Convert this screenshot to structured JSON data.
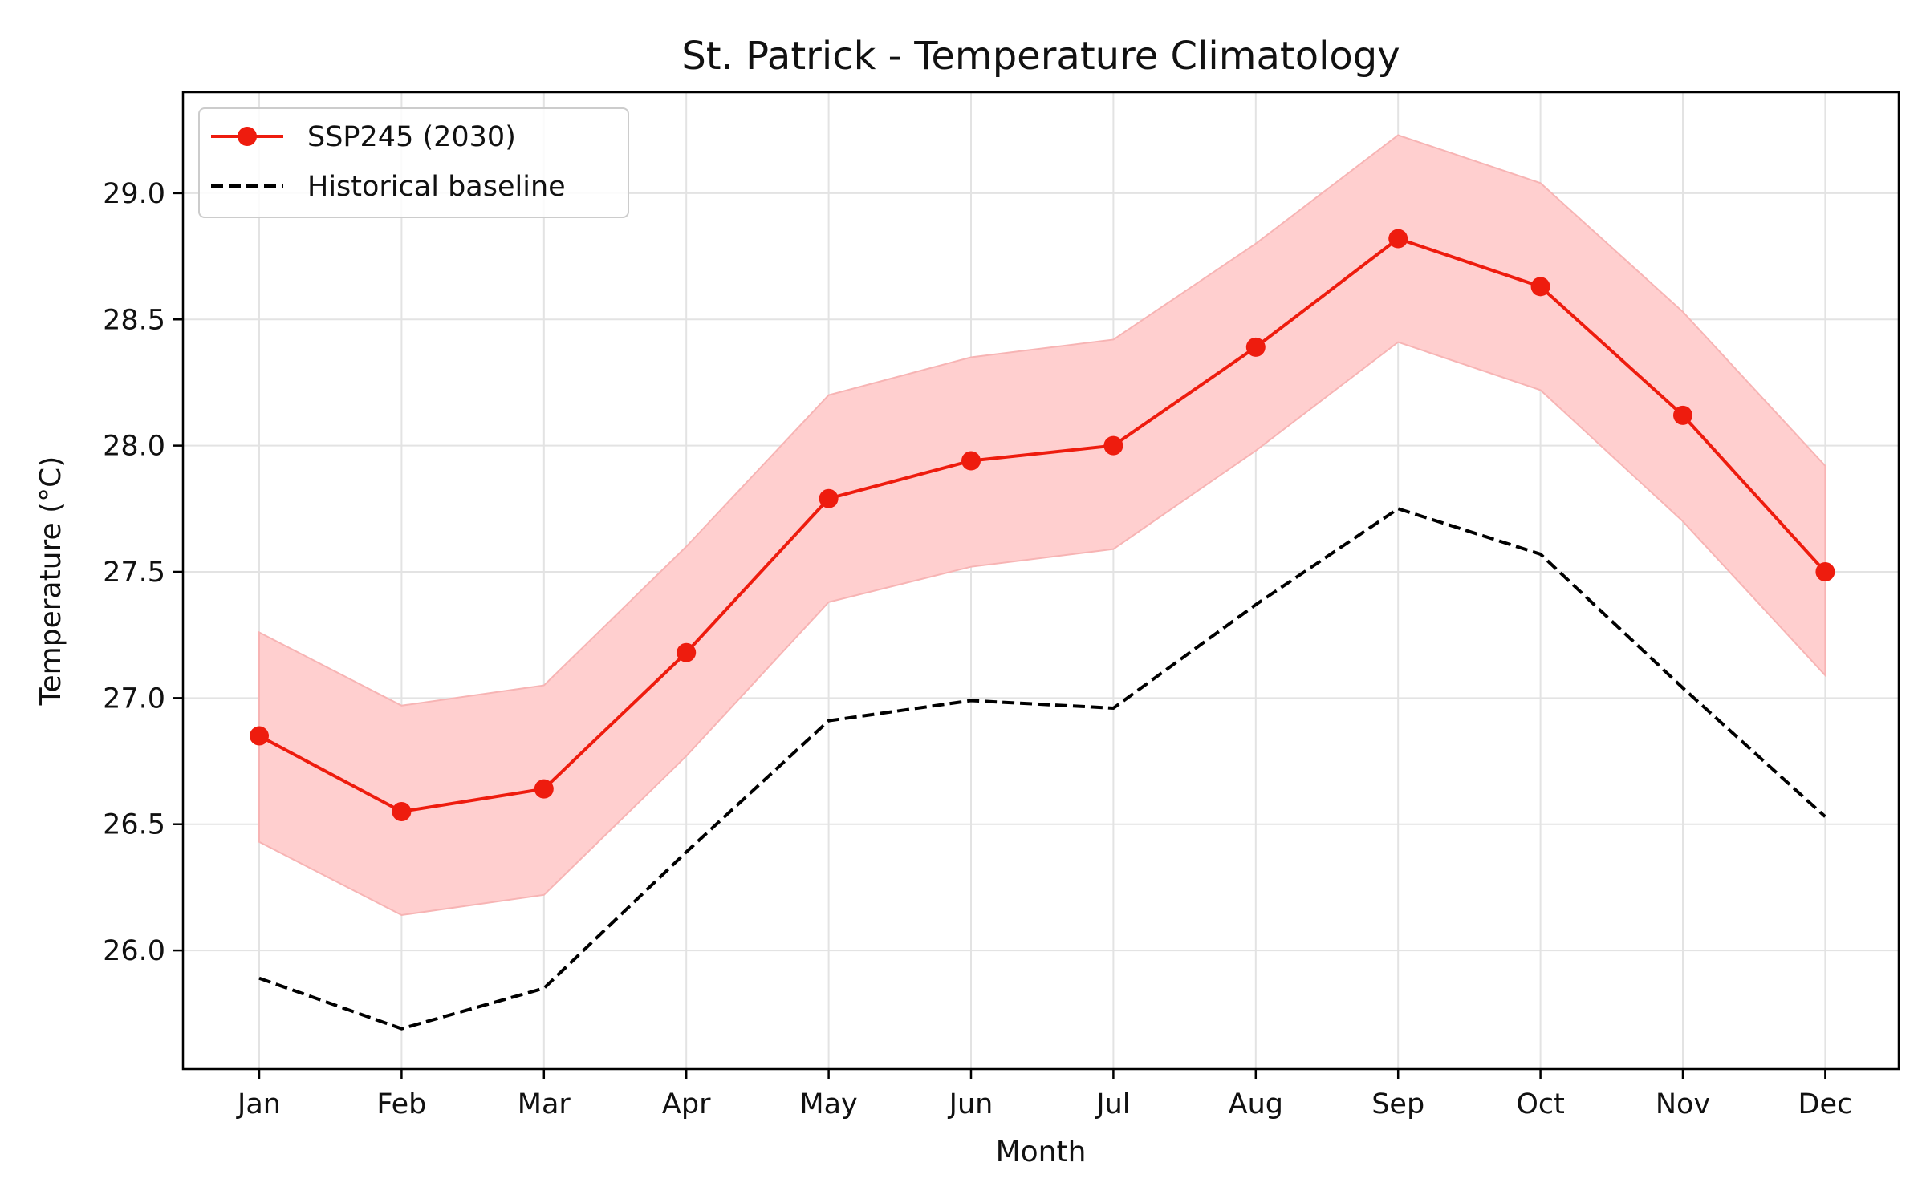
{
  "chart_data": {
    "type": "line",
    "title": "St. Patrick - Temperature Climatology",
    "xlabel": "Month",
    "ylabel": "Temperature (°C)",
    "categories": [
      "Jan",
      "Feb",
      "Mar",
      "Apr",
      "May",
      "Jun",
      "Jul",
      "Aug",
      "Sep",
      "Oct",
      "Nov",
      "Dec"
    ],
    "ylim": [
      25.53,
      29.4
    ],
    "yticks": [
      26.0,
      26.5,
      27.0,
      27.5,
      28.0,
      28.5,
      29.0
    ],
    "ytick_labels": [
      "26.0",
      "26.5",
      "27.0",
      "27.5",
      "28.0",
      "28.5",
      "29.0"
    ],
    "grid": true,
    "legend_position": "top-left",
    "series": [
      {
        "name": "SSP245 (2030)",
        "style": "solid-line-with-circle-markers",
        "color": "#ee1c0e",
        "values": [
          26.85,
          26.55,
          26.64,
          27.18,
          27.79,
          27.94,
          28.0,
          28.39,
          28.82,
          28.63,
          28.12,
          27.5
        ],
        "band_lower": [
          26.43,
          26.14,
          26.22,
          26.77,
          27.38,
          27.52,
          27.59,
          27.98,
          28.41,
          28.22,
          27.7,
          27.09
        ],
        "band_upper": [
          27.26,
          26.97,
          27.05,
          27.6,
          28.2,
          28.35,
          28.42,
          28.8,
          29.23,
          29.04,
          28.53,
          27.92
        ],
        "band_color": "#ffcfcf"
      },
      {
        "name": "Historical baseline",
        "style": "dashed-line",
        "color": "#000000",
        "values": [
          25.89,
          25.69,
          25.85,
          26.39,
          26.91,
          26.99,
          26.96,
          27.37,
          27.75,
          27.57,
          27.04,
          26.53
        ]
      }
    ]
  }
}
